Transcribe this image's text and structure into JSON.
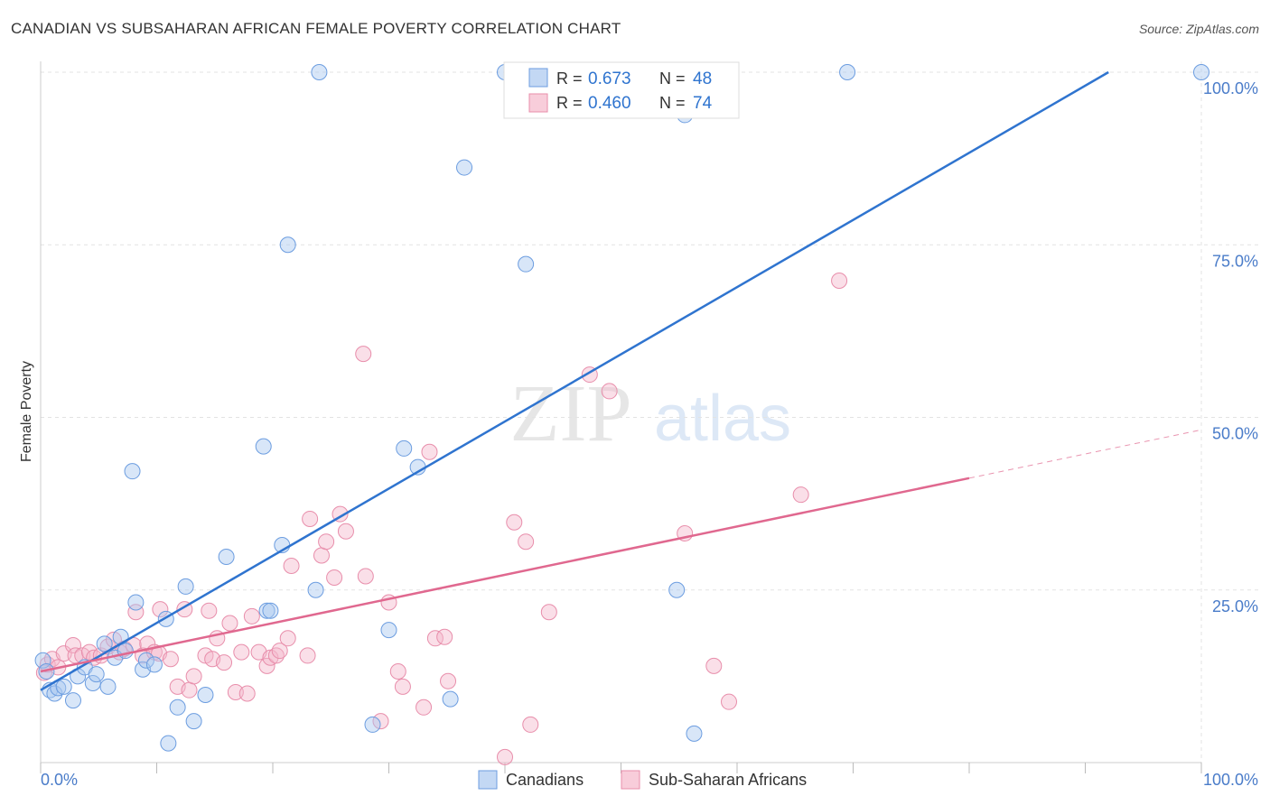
{
  "title": "CANADIAN VS SUBSAHARAN AFRICAN FEMALE POVERTY CORRELATION CHART",
  "source": "Source: ZipAtlas.com",
  "watermark": {
    "zip": "ZIP",
    "atlas": "atlas"
  },
  "chart_data": {
    "type": "scatter",
    "title": "CANADIAN VS SUBSAHARAN AFRICAN FEMALE POVERTY CORRELATION CHART",
    "xlabel": "",
    "ylabel": "Female Poverty",
    "xlim": [
      0,
      100
    ],
    "ylim": [
      0,
      100
    ],
    "x_tick_labels": [
      "0.0%",
      "100.0%"
    ],
    "y_ticks": [
      25,
      50,
      75,
      100
    ],
    "y_tick_labels": [
      "25.0%",
      "50.0%",
      "75.0%",
      "100.0%"
    ],
    "grid": true,
    "legend": {
      "position": "top-center",
      "entries": [
        {
          "r_label": "R =",
          "r": "0.673",
          "n_label": "N =",
          "n": "48"
        },
        {
          "r_label": "R =",
          "r": "0.460",
          "n_label": "N =",
          "n": "74"
        }
      ]
    },
    "bottom_legend": [
      "Canadians",
      "Sub-Saharan Africans"
    ],
    "colors": {
      "canadians_fill": "#a9c8f0",
      "canadians_line": "#2f74cf",
      "subsaharan_fill": "#f5b8cb",
      "subsaharan_line": "#e0688f",
      "tick_label": "#4a7cc9",
      "grid": "#e3e3e3"
    },
    "series": [
      {
        "name": "Canadians",
        "trend": {
          "x": [
            0,
            92
          ],
          "y": [
            10.5,
            100
          ]
        },
        "points": [
          [
            0.2,
            14.8
          ],
          [
            0.5,
            13.2
          ],
          [
            0.8,
            10.5
          ],
          [
            1.2,
            10.0
          ],
          [
            1.5,
            10.8
          ],
          [
            2.0,
            11.0
          ],
          [
            2.8,
            9.0
          ],
          [
            3.2,
            12.5
          ],
          [
            3.8,
            13.8
          ],
          [
            4.5,
            11.5
          ],
          [
            4.8,
            12.8
          ],
          [
            5.5,
            17.2
          ],
          [
            5.8,
            11.0
          ],
          [
            6.4,
            15.2
          ],
          [
            6.9,
            18.2
          ],
          [
            7.3,
            16.2
          ],
          [
            7.9,
            42.2
          ],
          [
            8.2,
            23.2
          ],
          [
            8.8,
            13.5
          ],
          [
            9.1,
            14.8
          ],
          [
            9.8,
            14.2
          ],
          [
            10.8,
            20.8
          ],
          [
            11.8,
            8.0
          ],
          [
            12.5,
            25.5
          ],
          [
            11.0,
            2.8
          ],
          [
            13.2,
            6.0
          ],
          [
            14.2,
            9.8
          ],
          [
            16.0,
            29.8
          ],
          [
            19.2,
            45.8
          ],
          [
            19.5,
            22.0
          ],
          [
            19.8,
            22.0
          ],
          [
            20.8,
            31.5
          ],
          [
            21.3,
            75.0
          ],
          [
            23.7,
            25.0
          ],
          [
            24.0,
            100.0
          ],
          [
            28.6,
            5.5
          ],
          [
            30.0,
            19.2
          ],
          [
            31.3,
            45.5
          ],
          [
            32.5,
            42.8
          ],
          [
            35.3,
            9.2
          ],
          [
            36.5,
            86.2
          ],
          [
            40.0,
            100.0
          ],
          [
            41.8,
            72.2
          ],
          [
            55.5,
            93.8
          ],
          [
            54.8,
            25.0
          ],
          [
            56.3,
            4.2
          ],
          [
            69.5,
            100.0
          ],
          [
            100.0,
            100.0
          ]
        ]
      },
      {
        "name": "Sub-Saharan Africans",
        "trend": {
          "x": [
            0,
            80
          ],
          "y": [
            13.2,
            41.2
          ]
        },
        "trend_dashed": {
          "x": [
            80,
            100
          ],
          "y": [
            41.2,
            48.2
          ]
        },
        "points": [
          [
            0.3,
            13.0
          ],
          [
            0.6,
            14.2
          ],
          [
            1.0,
            15.0
          ],
          [
            1.5,
            13.8
          ],
          [
            2.0,
            15.8
          ],
          [
            2.8,
            17.0
          ],
          [
            3.0,
            15.5
          ],
          [
            3.6,
            15.5
          ],
          [
            4.2,
            16.0
          ],
          [
            4.6,
            15.2
          ],
          [
            5.2,
            15.5
          ],
          [
            5.8,
            16.8
          ],
          [
            6.3,
            17.8
          ],
          [
            6.8,
            16.0
          ],
          [
            7.2,
            16.5
          ],
          [
            8.0,
            17.0
          ],
          [
            8.2,
            21.8
          ],
          [
            8.8,
            15.5
          ],
          [
            9.2,
            17.2
          ],
          [
            9.8,
            16.0
          ],
          [
            10.2,
            15.8
          ],
          [
            10.3,
            22.2
          ],
          [
            11.2,
            15.0
          ],
          [
            11.8,
            11.0
          ],
          [
            12.4,
            22.2
          ],
          [
            12.8,
            10.5
          ],
          [
            13.2,
            12.5
          ],
          [
            14.2,
            15.5
          ],
          [
            14.5,
            22.0
          ],
          [
            14.8,
            15.0
          ],
          [
            15.2,
            18.0
          ],
          [
            15.8,
            14.5
          ],
          [
            16.3,
            20.2
          ],
          [
            16.8,
            10.2
          ],
          [
            17.3,
            16.0
          ],
          [
            17.8,
            10.0
          ],
          [
            18.2,
            21.2
          ],
          [
            18.8,
            16.0
          ],
          [
            19.5,
            14.0
          ],
          [
            19.8,
            15.2
          ],
          [
            20.3,
            15.5
          ],
          [
            20.6,
            16.2
          ],
          [
            21.3,
            18.0
          ],
          [
            21.6,
            28.5
          ],
          [
            23.0,
            15.5
          ],
          [
            23.2,
            35.3
          ],
          [
            24.2,
            30.0
          ],
          [
            24.6,
            32.0
          ],
          [
            25.3,
            26.8
          ],
          [
            25.8,
            36.0
          ],
          [
            26.3,
            33.5
          ],
          [
            27.8,
            59.2
          ],
          [
            28.0,
            27.0
          ],
          [
            29.3,
            6.0
          ],
          [
            30.0,
            23.2
          ],
          [
            30.8,
            13.2
          ],
          [
            31.2,
            11.0
          ],
          [
            33.0,
            8.0
          ],
          [
            33.5,
            45.0
          ],
          [
            34.0,
            18.0
          ],
          [
            34.8,
            18.2
          ],
          [
            35.1,
            11.8
          ],
          [
            40.0,
            0.8
          ],
          [
            40.8,
            34.8
          ],
          [
            41.8,
            32.0
          ],
          [
            42.2,
            5.5
          ],
          [
            43.8,
            21.8
          ],
          [
            47.3,
            56.2
          ],
          [
            49.0,
            53.8
          ],
          [
            55.5,
            33.2
          ],
          [
            58.0,
            14.0
          ],
          [
            59.3,
            8.8
          ],
          [
            65.5,
            38.8
          ],
          [
            68.8,
            69.8
          ]
        ]
      }
    ]
  }
}
